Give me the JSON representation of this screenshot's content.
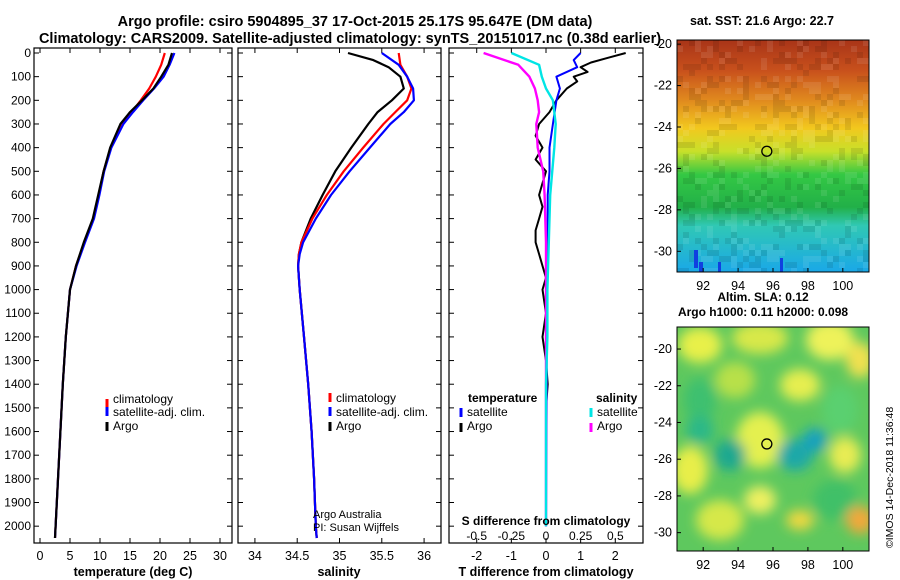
{
  "header": {
    "line1": "Argo profile: csiro 5904895_37 17-Oct-2015 25.17S 95.647E (DM data)",
    "line2": "Climatology: CARS2009. Satellite-adjusted climatology: synTS_20151017.nc (0.38d earlier)"
  },
  "credit": {
    "line1": "Argo Australia",
    "line2": "PI: Susan Wijffels"
  },
  "watermark": "©IMOS 14-Dec-2018 11:36:48",
  "colors": {
    "climatology": "#ff0000",
    "satellite": "#0000ff",
    "argo": "#000000",
    "salinity_sat": "#00e5e5",
    "salinity_argo": "#ff00ff"
  },
  "chart_data": [
    {
      "type": "line",
      "id": "temperature",
      "xlabel": "temperature (deg C)",
      "ylabel": "",
      "xlim": [
        -1,
        32
      ],
      "ylim": [
        0,
        2050
      ],
      "xticks": [
        0,
        5,
        10,
        15,
        20,
        25,
        30
      ],
      "yticks": [
        0,
        100,
        200,
        300,
        400,
        500,
        600,
        700,
        800,
        900,
        1000,
        1100,
        1200,
        1300,
        1400,
        1500,
        1600,
        1700,
        1800,
        1900,
        2000
      ],
      "legend": [
        "climatology",
        "satellite-adj. clim.",
        "Argo"
      ],
      "series": [
        {
          "name": "climatology",
          "depth": [
            0,
            50,
            100,
            150,
            200,
            250,
            300,
            400,
            500,
            600,
            700,
            800,
            900,
            1000,
            1200,
            1400,
            1600,
            1800,
            2000,
            2050
          ],
          "values": [
            20.8,
            20.2,
            19.3,
            18.2,
            16.8,
            15.3,
            13.8,
            11.8,
            10.6,
            9.8,
            8.9,
            7.4,
            6.0,
            5.0,
            4.3,
            3.8,
            3.4,
            3.0,
            2.6,
            2.5
          ]
        },
        {
          "name": "satellite-adj. clim.",
          "depth": [
            0,
            50,
            100,
            150,
            200,
            250,
            300,
            400,
            500,
            600,
            700,
            800,
            900,
            1000,
            1200,
            1400,
            1600,
            1800,
            2000,
            2050
          ],
          "values": [
            22.4,
            21.6,
            20.6,
            19.0,
            17.2,
            15.5,
            13.9,
            11.9,
            10.7,
            9.9,
            9.0,
            7.5,
            6.1,
            5.0,
            4.3,
            3.8,
            3.4,
            3.0,
            2.6,
            2.5
          ]
        },
        {
          "name": "Argo",
          "depth": [
            0,
            50,
            100,
            150,
            200,
            250,
            300,
            400,
            500,
            600,
            700,
            800,
            900,
            1000,
            1200,
            1400,
            1600,
            1800,
            2000,
            2050
          ],
          "values": [
            22.0,
            21.4,
            20.2,
            18.9,
            17.0,
            15.0,
            13.4,
            11.7,
            10.6,
            9.7,
            8.8,
            7.3,
            6.0,
            5.0,
            4.3,
            3.8,
            3.4,
            3.0,
            2.6,
            2.5
          ]
        }
      ]
    },
    {
      "type": "line",
      "id": "salinity",
      "xlabel": "salinity",
      "ylabel": "",
      "xlim": [
        33.8,
        36.2
      ],
      "ylim": [
        0,
        2050
      ],
      "xticks": [
        34,
        34.5,
        35,
        35.5,
        36
      ],
      "xtick_labels": [
        "34",
        "34.5",
        "35",
        "35.5",
        "36"
      ],
      "legend": [
        "climatology",
        "satellite-adj. clim.",
        "Argo"
      ],
      "series": [
        {
          "name": "climatology",
          "depth": [
            0,
            50,
            100,
            150,
            200,
            250,
            300,
            400,
            500,
            600,
            700,
            800,
            850,
            900,
            1000,
            1200,
            1400,
            1600,
            1800,
            2000,
            2050
          ],
          "values": [
            35.7,
            35.72,
            35.8,
            35.85,
            35.8,
            35.66,
            35.52,
            35.28,
            35.05,
            34.85,
            34.68,
            34.55,
            34.52,
            34.51,
            34.53,
            34.58,
            34.63,
            34.67,
            34.7,
            34.72,
            34.73
          ]
        },
        {
          "name": "satellite-adj. clim.",
          "depth": [
            0,
            50,
            100,
            150,
            200,
            250,
            300,
            400,
            500,
            600,
            700,
            800,
            850,
            900,
            1000,
            1200,
            1400,
            1600,
            1800,
            2000,
            2050
          ],
          "values": [
            35.5,
            35.7,
            35.8,
            35.87,
            35.88,
            35.76,
            35.6,
            35.36,
            35.12,
            34.9,
            34.72,
            34.57,
            34.53,
            34.51,
            34.53,
            34.58,
            34.63,
            34.67,
            34.7,
            34.72,
            34.73
          ]
        },
        {
          "name": "Argo",
          "depth": [
            0,
            30,
            60,
            100,
            150,
            200,
            250,
            300,
            400,
            500,
            600,
            700,
            800,
            850,
            900,
            1000,
            1200,
            1400,
            1600,
            1800,
            2000,
            2050
          ],
          "values": [
            35.1,
            35.4,
            35.58,
            35.72,
            35.76,
            35.62,
            35.45,
            35.34,
            35.14,
            34.95,
            34.8,
            34.66,
            34.55,
            34.52,
            34.51,
            34.53,
            34.58,
            34.63,
            34.67,
            34.7,
            34.72,
            34.73
          ]
        }
      ]
    },
    {
      "type": "line",
      "id": "differences",
      "xlabel": "T difference from climatology",
      "xlabel_top": "S difference from climatology",
      "xlim": [
        -2.8,
        2.8
      ],
      "ylim": [
        0,
        2050
      ],
      "xticks": [
        -2,
        -1,
        0,
        1,
        2
      ],
      "xticks_s": [
        -0.5,
        -0.25,
        0,
        0.25,
        0.5
      ],
      "xtick_labels_s": [
        "-0.5",
        "-0.25",
        "0",
        "0.25",
        "0.5"
      ],
      "legend_groups": {
        "temperature": "temperature",
        "salinity": "salinity"
      },
      "legend": {
        "t_satellite": "satellite",
        "t_argo": "Argo",
        "s_satellite": "satellite",
        "s_argo": "Argo"
      },
      "series": [
        {
          "name": "T satellite",
          "depth": [
            0,
            30,
            60,
            100,
            150,
            200,
            300,
            400,
            500,
            600,
            800,
            1000,
            1200,
            1400,
            2000
          ],
          "values": [
            1.0,
            0.8,
            0.9,
            0.3,
            0.4,
            0.3,
            0.2,
            0.1,
            0.1,
            0.05,
            0.05,
            0.02,
            0.02,
            0.02,
            0.0
          ]
        },
        {
          "name": "T Argo",
          "depth": [
            0,
            20,
            40,
            60,
            80,
            100,
            120,
            150,
            200,
            250,
            300,
            350,
            400,
            450,
            500,
            550,
            600,
            650,
            700,
            750,
            800,
            850,
            900,
            950,
            1000,
            1100,
            1200,
            1300,
            1400,
            1500,
            2000
          ],
          "values": [
            2.3,
            1.8,
            1.3,
            1.0,
            1.2,
            0.8,
            0.9,
            0.6,
            0.3,
            0.1,
            -0.2,
            -0.3,
            -0.1,
            -0.3,
            0.0,
            -0.1,
            -0.2,
            -0.1,
            -0.2,
            -0.3,
            -0.3,
            -0.2,
            -0.1,
            0.0,
            -0.1,
            0.0,
            -0.1,
            0.0,
            0.05,
            0.0,
            0.0
          ]
        },
        {
          "name": "S satellite",
          "depth": [
            0,
            50,
            100,
            150,
            200,
            300,
            400,
            600,
            800,
            1000,
            1200,
            1400,
            1600,
            2000
          ],
          "values": [
            -0.25,
            -0.05,
            -0.03,
            0.0,
            0.05,
            0.07,
            0.06,
            0.03,
            0.02,
            0.01,
            0.01,
            0.0,
            0.0,
            0.0
          ]
        },
        {
          "name": "S Argo",
          "depth": [
            0,
            50,
            100,
            150,
            200,
            250,
            300,
            400,
            500,
            600,
            800,
            1000,
            1200,
            1400,
            1600,
            2000
          ],
          "values": [
            -0.45,
            -0.2,
            -0.12,
            -0.08,
            -0.06,
            -0.05,
            -0.07,
            -0.06,
            -0.02,
            -0.01,
            0.0,
            0.0,
            0.0,
            0.0,
            0.0,
            0.0
          ]
        }
      ]
    },
    {
      "type": "heatmap",
      "id": "sst-map",
      "title": "sat. SST: 21.6 Argo: 22.7",
      "xlim": [
        90.5,
        101.5
      ],
      "ylim": [
        -31,
        -19.8
      ],
      "xticks": [
        92,
        94,
        96,
        98,
        100
      ],
      "yticks": [
        -20,
        -22,
        -24,
        -26,
        -28,
        -30
      ],
      "marker": {
        "lon": 95.647,
        "lat": -25.17
      }
    },
    {
      "type": "heatmap",
      "id": "sla-map",
      "title": "Altim. SLA: 0.12",
      "subtitle": "Argo h1000: 0.11 h2000: 0.098",
      "xlim": [
        90.5,
        101.5
      ],
      "ylim": [
        -31,
        -18.8
      ],
      "xticks": [
        92,
        94,
        96,
        98,
        100
      ],
      "yticks": [
        -20,
        -22,
        -24,
        -26,
        -28,
        -30
      ],
      "marker": {
        "lon": 95.647,
        "lat": -25.17
      }
    }
  ]
}
